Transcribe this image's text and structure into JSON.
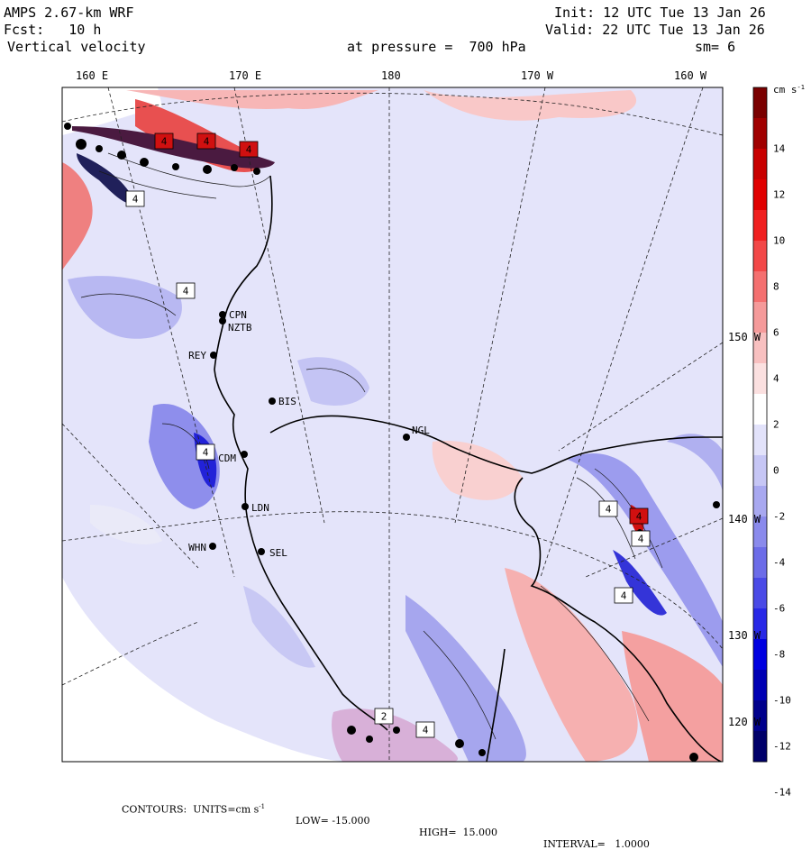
{
  "header": {
    "model": "AMPS 2.67-km WRF",
    "fcst": "Fcst:   10 h",
    "field": "Vertical velocity",
    "init": "Init: 12 UTC Tue 13 Jan 26",
    "valid": "Valid: 22 UTC Tue 13 Jan 26",
    "pressure": "at pressure =  700 hPa",
    "sm": "sm= 6"
  },
  "lon_labels": [
    "160 E",
    "170 E",
    "180",
    "170 W",
    "160 W"
  ],
  "lat_labels": [
    "150 W",
    "140 W",
    "130 W",
    "120 W"
  ],
  "stations": [
    "CPN",
    "NZTB",
    "REY",
    "BIS",
    "NGL",
    "CDM",
    "LDN",
    "WHN",
    "SEL"
  ],
  "colorbar": {
    "units": "cm s",
    "units_exp": "-1",
    "ticks": [
      "14",
      "12",
      "10",
      "8",
      "6",
      "4",
      "2",
      "0",
      "-2",
      "-4",
      "-6",
      "-8",
      "-10",
      "-12",
      "-14"
    ],
    "colors": [
      "#7a0000",
      "#a00000",
      "#c80000",
      "#e00000",
      "#f02020",
      "#f24848",
      "#f47070",
      "#f59a9a",
      "#f8c0c0",
      "#fbe0e0",
      "#ffffff",
      "#e2e2fa",
      "#c6c6f5",
      "#a8a8f0",
      "#8a8aec",
      "#6c6ce8",
      "#4a4ae6",
      "#2828e6",
      "#0000e0",
      "#0000b4",
      "#00008c",
      "#00006a"
    ]
  },
  "boxes": [
    "4",
    "4",
    "4",
    "4",
    "4",
    "4",
    "4",
    "4",
    "4",
    "4",
    "2",
    "4"
  ],
  "footer": {
    "prefix": "CONTOURS:  UNITS=cm s",
    "exp": "-1",
    "low": "LOW= -15.000",
    "high": "HIGH=  15.000",
    "interval": "INTERVAL=   1.0000"
  }
}
